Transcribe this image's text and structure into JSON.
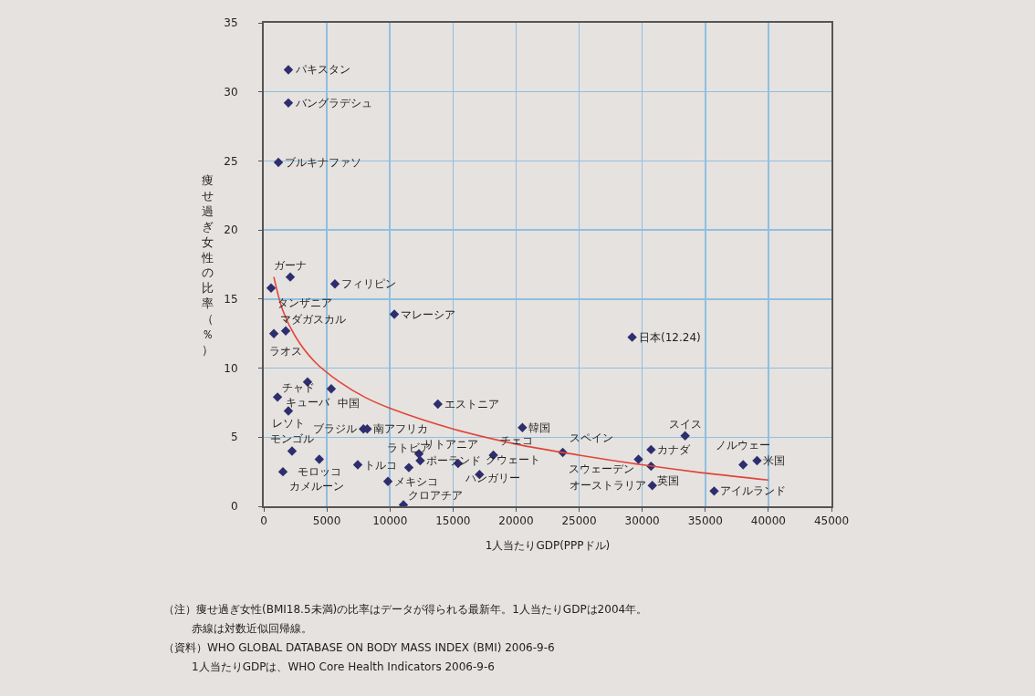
{
  "chart_data": {
    "type": "scatter",
    "xlabel": "1人当たりGDP(PPPドル)",
    "ylabel": "痩せ過ぎ女性の比率（％）",
    "xlim": [
      0,
      45000
    ],
    "xticks": [
      0,
      5000,
      10000,
      15000,
      20000,
      25000,
      30000,
      35000,
      40000,
      45000
    ],
    "ylim": [
      0,
      35
    ],
    "yticks": [
      0,
      5,
      10,
      15,
      20,
      25,
      30,
      35
    ],
    "grid": true,
    "series": [
      {
        "marker": "diamond",
        "color": "#2e2e6e",
        "x": [
          1950,
          1950,
          1160,
          2100,
          580,
          5640,
          10350,
          1740,
          800,
          3470,
          5350,
          1090,
          1950,
          7900,
          8200,
          13800,
          20500,
          2240,
          4400,
          1520,
          7450,
          9840,
          11070,
          12300,
          12400,
          11500,
          15400,
          17100,
          18200,
          23700,
          29700,
          30700,
          30700,
          30800,
          33400,
          38000,
          39100,
          35700,
          29200
        ],
        "values": [
          31.6,
          29.2,
          24.9,
          16.6,
          15.8,
          16.1,
          13.9,
          12.7,
          12.5,
          9.0,
          8.5,
          7.9,
          6.9,
          5.6,
          5.6,
          7.4,
          5.7,
          4.0,
          3.4,
          2.5,
          3.0,
          1.8,
          0.1,
          3.8,
          3.3,
          2.8,
          3.1,
          2.3,
          3.7,
          3.9,
          3.4,
          4.1,
          2.9,
          1.5,
          5.1,
          3.0,
          3.3,
          1.1,
          12.24
        ]
      },
      {
        "type": "line",
        "marker": "none",
        "line_style": "solid",
        "color": "#e0453a",
        "x": [
          800,
          1500,
          2500,
          4000,
          6000,
          8000,
          10000,
          15000,
          20000,
          25000,
          30000,
          35000,
          40000
        ],
        "values": [
          16.6,
          14.2,
          12.3,
          10.5,
          9.0,
          7.9,
          7.1,
          5.6,
          4.5,
          3.7,
          3.0,
          2.4,
          1.9
        ]
      }
    ],
    "annotations": [
      {
        "text": "パキスタン",
        "x": 1950,
        "y": 31.6
      },
      {
        "text": "バングラデシュ",
        "x": 1950,
        "y": 29.2
      },
      {
        "text": "ブルキナファソ",
        "x": 1160,
        "y": 24.9
      },
      {
        "text": "ガーナ",
        "x": 2100,
        "y": 16.6
      },
      {
        "text": "タンザニア",
        "x": 580,
        "y": 15.8
      },
      {
        "text": "フィリピン",
        "x": 5640,
        "y": 16.1
      },
      {
        "text": "マレーシア",
        "x": 10350,
        "y": 13.9
      },
      {
        "text": "ラオス",
        "x": 1740,
        "y": 12.7
      },
      {
        "text": "マダガスカル",
        "x": 800,
        "y": 12.5
      },
      {
        "text": "キューバ",
        "x": 3470,
        "y": 9.0
      },
      {
        "text": "中国",
        "x": 5350,
        "y": 8.5
      },
      {
        "text": "チャド",
        "x": 1090,
        "y": 7.9
      },
      {
        "text": "レソト",
        "x": 1950,
        "y": 6.9
      },
      {
        "text": "ブラジル",
        "x": 7900,
        "y": 5.6
      },
      {
        "text": "南アフリカ",
        "x": 8200,
        "y": 5.6
      },
      {
        "text": "エストニア",
        "x": 13800,
        "y": 7.4
      },
      {
        "text": "韓国",
        "x": 20500,
        "y": 5.7
      },
      {
        "text": "モンゴル",
        "x": 2240,
        "y": 4.0
      },
      {
        "text": "モロッコ",
        "x": 4400,
        "y": 3.4
      },
      {
        "text": "カメルーン",
        "x": 1520,
        "y": 2.5
      },
      {
        "text": "トルコ",
        "x": 7450,
        "y": 3.0
      },
      {
        "text": "メキシコ",
        "x": 9840,
        "y": 1.8
      },
      {
        "text": "クロアチア",
        "x": 11070,
        "y": 0.1
      },
      {
        "text": "リトアニア",
        "x": 12300,
        "y": 3.8
      },
      {
        "text": "ポーランド",
        "x": 12400,
        "y": 3.3
      },
      {
        "text": "ラトビア",
        "x": 11500,
        "y": 2.8
      },
      {
        "text": "ハンガリー",
        "x": 15400,
        "y": 3.1
      },
      {
        "text": "クウェート",
        "x": 17100,
        "y": 2.3
      },
      {
        "text": "チェコ",
        "x": 18200,
        "y": 3.7
      },
      {
        "text": "スペイン",
        "x": 23700,
        "y": 3.9
      },
      {
        "text": "スウェーデン",
        "x": 29700,
        "y": 3.4
      },
      {
        "text": "カナダ",
        "x": 30700,
        "y": 4.1
      },
      {
        "text": "英国",
        "x": 30700,
        "y": 2.9
      },
      {
        "text": "オーストラリア",
        "x": 30800,
        "y": 1.5
      },
      {
        "text": "スイス",
        "x": 33400,
        "y": 5.1
      },
      {
        "text": "ノルウェー",
        "x": 38000,
        "y": 3.0
      },
      {
        "text": "米国",
        "x": 39100,
        "y": 3.3
      },
      {
        "text": "アイルランド",
        "x": 35700,
        "y": 1.1
      },
      {
        "text": "日本(12.24)",
        "x": 29200,
        "y": 12.24
      },
      "（注）痩せ過ぎ女性(BMI18.5未満)の比率はデータが得られる最新年。1人当たりGDPは2004年。",
      "赤線は対数近似回帰線。",
      "（資料）WHO GLOBAL DATABASE ON BODY MASS INDEX (BMI) 2006-9-6",
      "1人当たりGDPは、WHO Core Health Indicators 2006-9-6"
    ]
  }
}
